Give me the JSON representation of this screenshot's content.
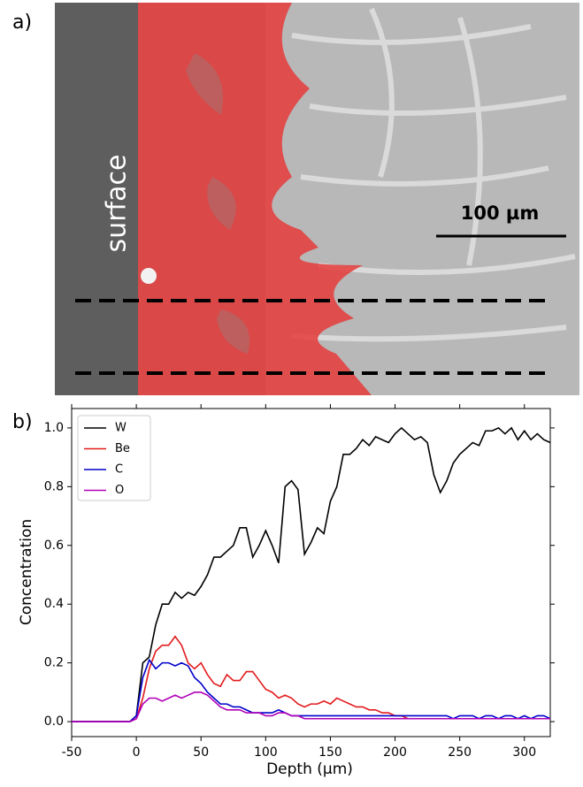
{
  "panel_a": {
    "label": "a)",
    "surface_label": "surface",
    "scale_bar_label": "100 µm"
  },
  "chart_data": {
    "type": "line",
    "panel_label": "b)",
    "x_label": "Depth (μm)",
    "y_label": "Concentration",
    "xlim": [
      -50,
      320
    ],
    "ylim": [
      -0.051,
      1.066
    ],
    "xticks": [
      -50,
      0,
      50,
      100,
      150,
      200,
      250,
      300
    ],
    "yticks": [
      {
        "value": 0,
        "label": "0.0"
      },
      0.2,
      0.4,
      0.6,
      0.8,
      {
        "value": 1,
        "label": "1.0"
      }
    ],
    "legend": "upper left",
    "x": [
      -50,
      -45,
      -40,
      -35,
      -30,
      -25,
      -20,
      -15,
      -10,
      -5,
      0,
      5,
      10,
      15,
      20,
      25,
      30,
      35,
      40,
      45,
      50,
      55,
      60,
      65,
      70,
      75,
      80,
      85,
      90,
      95,
      100,
      105,
      110,
      115,
      120,
      125,
      130,
      135,
      140,
      145,
      150,
      155,
      160,
      165,
      170,
      175,
      180,
      185,
      190,
      195,
      200,
      205,
      210,
      215,
      220,
      225,
      230,
      235,
      240,
      245,
      250,
      255,
      260,
      265,
      270,
      275,
      280,
      285,
      290,
      295,
      300,
      305,
      310,
      315,
      320
    ],
    "series": [
      {
        "name": "W",
        "color": "#000000",
        "values": [
          0,
          0,
          0,
          0,
          0,
          0,
          0,
          0,
          0,
          0,
          0.02,
          0.2,
          0.22,
          0.33,
          0.4,
          0.4,
          0.44,
          0.42,
          0.44,
          0.43,
          0.46,
          0.5,
          0.56,
          0.56,
          0.58,
          0.6,
          0.66,
          0.66,
          0.56,
          0.6,
          0.65,
          0.6,
          0.54,
          0.8,
          0.82,
          0.79,
          0.57,
          0.61,
          0.66,
          0.64,
          0.75,
          0.8,
          0.91,
          0.91,
          0.93,
          0.96,
          0.94,
          0.97,
          0.96,
          0.95,
          0.98,
          1.0,
          0.98,
          0.96,
          0.97,
          0.95,
          0.84,
          0.78,
          0.82,
          0.88,
          0.91,
          0.93,
          0.95,
          0.94,
          0.99,
          0.99,
          1.0,
          0.98,
          1.0,
          0.96,
          0.99,
          0.96,
          0.98,
          0.96,
          0.95
        ]
      },
      {
        "name": "Be",
        "color": "#e31a1c",
        "values": [
          0,
          0,
          0,
          0,
          0,
          0,
          0,
          0,
          0,
          0,
          0.01,
          0.08,
          0.18,
          0.24,
          0.26,
          0.26,
          0.29,
          0.26,
          0.2,
          0.18,
          0.2,
          0.16,
          0.13,
          0.12,
          0.16,
          0.14,
          0.14,
          0.17,
          0.17,
          0.14,
          0.11,
          0.1,
          0.08,
          0.09,
          0.08,
          0.06,
          0.05,
          0.06,
          0.06,
          0.07,
          0.06,
          0.08,
          0.07,
          0.06,
          0.05,
          0.05,
          0.04,
          0.04,
          0.03,
          0.03,
          0.02,
          0.02,
          0.01,
          0.01,
          0.01,
          0.01,
          0.01,
          0.01,
          0.01,
          0.01,
          0.01,
          0.01,
          0.01,
          0.01,
          0.01,
          0.01,
          0.01,
          0.01,
          0.01,
          0.01,
          0.01,
          0.01,
          0.01,
          0.01,
          0.01
        ]
      },
      {
        "name": "C",
        "color": "#0000cc",
        "values": [
          0,
          0,
          0,
          0,
          0,
          0,
          0,
          0,
          0,
          0,
          0.02,
          0.15,
          0.21,
          0.18,
          0.2,
          0.2,
          0.19,
          0.2,
          0.19,
          0.15,
          0.13,
          0.1,
          0.08,
          0.06,
          0.06,
          0.05,
          0.05,
          0.04,
          0.03,
          0.03,
          0.03,
          0.03,
          0.04,
          0.03,
          0.02,
          0.02,
          0.02,
          0.02,
          0.02,
          0.02,
          0.02,
          0.02,
          0.02,
          0.02,
          0.02,
          0.02,
          0.02,
          0.02,
          0.02,
          0.02,
          0.02,
          0.02,
          0.02,
          0.02,
          0.02,
          0.02,
          0.02,
          0.02,
          0.02,
          0.01,
          0.02,
          0.02,
          0.02,
          0.01,
          0.02,
          0.02,
          0.01,
          0.02,
          0.02,
          0.01,
          0.02,
          0.01,
          0.02,
          0.02,
          0.01
        ]
      },
      {
        "name": "O",
        "color": "#b000b8",
        "values": [
          0,
          0,
          0,
          0,
          0,
          0,
          0,
          0,
          0,
          0,
          0.01,
          0.06,
          0.08,
          0.08,
          0.07,
          0.08,
          0.09,
          0.08,
          0.09,
          0.1,
          0.1,
          0.09,
          0.07,
          0.05,
          0.04,
          0.04,
          0.04,
          0.03,
          0.03,
          0.03,
          0.02,
          0.02,
          0.03,
          0.03,
          0.02,
          0.02,
          0.01,
          0.01,
          0.01,
          0.01,
          0.01,
          0.01,
          0.01,
          0.01,
          0.01,
          0.01,
          0.01,
          0.01,
          0.01,
          0.01,
          0.01,
          0.01,
          0.01,
          0.01,
          0.01,
          0.01,
          0.01,
          0.01,
          0.01,
          0.01,
          0.01,
          0.01,
          0.01,
          0.01,
          0.01,
          0.01,
          0.01,
          0.01,
          0.01,
          0.01,
          0.01,
          0.01,
          0.01,
          0.01,
          0.01
        ]
      }
    ]
  }
}
